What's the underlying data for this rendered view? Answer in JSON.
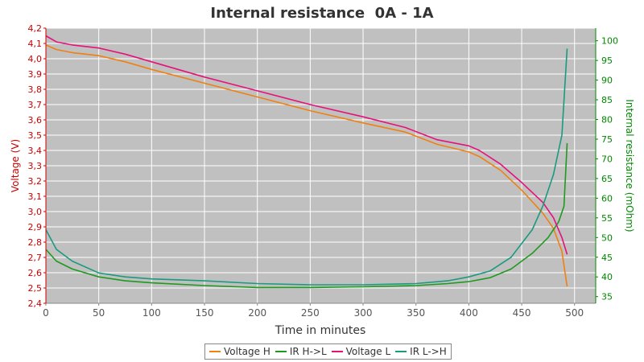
{
  "chart_data": {
    "type": "line",
    "title": "Internal resistance  0A - 1A",
    "xlabel": "Time in minutes",
    "ylabel_left": "Voltage (V)",
    "ylabel_right": "Internal resistance (mOhm)",
    "xlim": [
      0,
      520
    ],
    "ylim_left": [
      2.4,
      4.2
    ],
    "ylim_right": [
      33.3,
      103.2
    ],
    "x_ticks": [
      0,
      50,
      100,
      150,
      200,
      250,
      300,
      350,
      400,
      450,
      500
    ],
    "y_left_ticks": [
      "2,4",
      "2,5",
      "2,6",
      "2,7",
      "2,8",
      "2,9",
      "3,0",
      "3,1",
      "3,2",
      "3,3",
      "3,4",
      "3,5",
      "3,6",
      "3,7",
      "3,8",
      "3,9",
      "4,0",
      "4,1",
      "4,2"
    ],
    "y_right_ticks": [
      35,
      40,
      45,
      50,
      55,
      60,
      65,
      70,
      75,
      80,
      85,
      90,
      95,
      100
    ],
    "grid": true,
    "legend_position": "bottom-center",
    "colors": {
      "plot_bg": "#c0c0c0",
      "left_axis": "#cc0000",
      "right_axis": "#008800"
    },
    "series": [
      {
        "name": "Voltage H",
        "axis": "left",
        "color": "#f08010",
        "x": [
          0,
          10,
          25,
          50,
          75,
          100,
          150,
          200,
          250,
          300,
          340,
          370,
          400,
          410,
          430,
          450,
          470,
          480,
          488,
          493
        ],
        "y": [
          4.09,
          4.06,
          4.04,
          4.02,
          3.98,
          3.93,
          3.84,
          3.75,
          3.66,
          3.58,
          3.52,
          3.44,
          3.39,
          3.36,
          3.27,
          3.14,
          2.99,
          2.89,
          2.74,
          2.51
        ]
      },
      {
        "name": "IR H->L",
        "axis": "right",
        "color": "#1e9a1e",
        "x": [
          0,
          10,
          25,
          50,
          75,
          100,
          150,
          200,
          250,
          300,
          350,
          380,
          400,
          420,
          440,
          460,
          475,
          485,
          490,
          493
        ],
        "y": [
          47.0,
          44.0,
          42.0,
          40.0,
          39.0,
          38.5,
          37.8,
          37.3,
          37.3,
          37.5,
          37.8,
          38.3,
          38.8,
          39.8,
          42.0,
          46.0,
          50.0,
          54.0,
          58.0,
          74.0
        ]
      },
      {
        "name": "Voltage L",
        "axis": "left",
        "color": "#e8107a",
        "x": [
          0,
          10,
          25,
          50,
          75,
          100,
          150,
          200,
          250,
          300,
          340,
          370,
          400,
          410,
          430,
          450,
          470,
          480,
          488,
          493
        ],
        "y": [
          4.15,
          4.11,
          4.09,
          4.07,
          4.03,
          3.98,
          3.88,
          3.79,
          3.7,
          3.62,
          3.55,
          3.47,
          3.43,
          3.4,
          3.31,
          3.19,
          3.06,
          2.96,
          2.83,
          2.72
        ]
      },
      {
        "name": "IR L->H",
        "axis": "right",
        "color": "#1a9a7e",
        "x": [
          0,
          10,
          25,
          50,
          75,
          100,
          150,
          200,
          250,
          300,
          350,
          380,
          400,
          420,
          440,
          460,
          470,
          480,
          488,
          493
        ],
        "y": [
          52.0,
          47.0,
          44.0,
          41.0,
          40.0,
          39.5,
          39.0,
          38.3,
          38.0,
          38.0,
          38.3,
          39.0,
          40.0,
          41.5,
          45.0,
          52.0,
          58.0,
          66.0,
          76.0,
          98.0
        ]
      }
    ]
  }
}
